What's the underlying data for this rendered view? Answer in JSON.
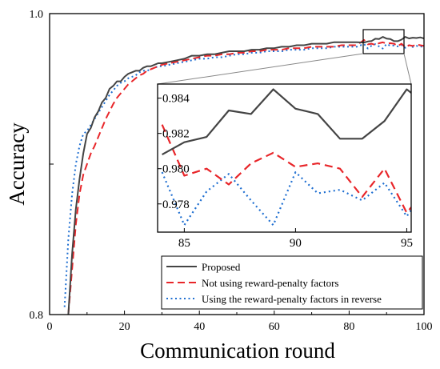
{
  "chart_data": {
    "type": "line",
    "xlabel": "Communication round",
    "ylabel": "Accuracy",
    "xlim": [
      0,
      100
    ],
    "ylim": [
      0.8,
      1.0
    ],
    "x_ticks": [
      "0",
      "20",
      "40",
      "60",
      "80",
      "100"
    ],
    "y_ticks": [
      "0.8",
      "1.0"
    ],
    "legend_position": "bottom-right",
    "series": [
      {
        "name": "Proposed",
        "color": "#444444",
        "style": "solid",
        "x": [
          5,
          6,
          7,
          8,
          9,
          10,
          11,
          12,
          13,
          14,
          15,
          16,
          17,
          18,
          19,
          20,
          21,
          22,
          23,
          24,
          25,
          26,
          27,
          28,
          29,
          30,
          32,
          34,
          36,
          38,
          40,
          42,
          44,
          46,
          48,
          50,
          52,
          54,
          56,
          58,
          60,
          62,
          64,
          66,
          68,
          70,
          72,
          74,
          76,
          78,
          80,
          82,
          84,
          85,
          86,
          87,
          88,
          89,
          90,
          91,
          92,
          93,
          94,
          95,
          96,
          97,
          98,
          99,
          100
        ],
        "y": [
          0.8,
          0.84,
          0.87,
          0.89,
          0.907,
          0.92,
          0.924,
          0.931,
          0.935,
          0.941,
          0.944,
          0.95,
          0.952,
          0.955,
          0.955,
          0.958,
          0.96,
          0.961,
          0.962,
          0.962,
          0.964,
          0.965,
          0.965,
          0.966,
          0.967,
          0.967,
          0.968,
          0.969,
          0.97,
          0.972,
          0.972,
          0.973,
          0.973,
          0.974,
          0.975,
          0.975,
          0.975,
          0.976,
          0.976,
          0.977,
          0.977,
          0.978,
          0.978,
          0.979,
          0.979,
          0.98,
          0.98,
          0.98,
          0.981,
          0.981,
          0.981,
          0.981,
          0.9808,
          0.9815,
          0.9818,
          0.9833,
          0.9831,
          0.9845,
          0.9834,
          0.9831,
          0.9817,
          0.9817,
          0.9827,
          0.9845,
          0.9835,
          0.984,
          0.9838,
          0.9842,
          0.9835
        ]
      },
      {
        "name": "Not using reward-penalty factors",
        "color": "#e8262a",
        "style": "dashed",
        "x": [
          5,
          6,
          7,
          8,
          9,
          10,
          11,
          12,
          13,
          14,
          15,
          16,
          17,
          18,
          19,
          20,
          21,
          22,
          23,
          24,
          25,
          26,
          27,
          28,
          29,
          30,
          32,
          34,
          36,
          38,
          40,
          42,
          44,
          46,
          48,
          50,
          52,
          54,
          56,
          58,
          60,
          62,
          64,
          66,
          68,
          70,
          72,
          74,
          76,
          78,
          80,
          82,
          84,
          85,
          86,
          87,
          88,
          89,
          90,
          91,
          92,
          93,
          94,
          95,
          96,
          97,
          98,
          99,
          100
        ],
        "y": [
          0.8,
          0.83,
          0.86,
          0.88,
          0.893,
          0.9,
          0.907,
          0.912,
          0.918,
          0.924,
          0.93,
          0.935,
          0.94,
          0.944,
          0.947,
          0.95,
          0.953,
          0.955,
          0.957,
          0.959,
          0.96,
          0.962,
          0.963,
          0.964,
          0.965,
          0.966,
          0.967,
          0.968,
          0.969,
          0.97,
          0.971,
          0.972,
          0.972,
          0.973,
          0.973,
          0.974,
          0.974,
          0.975,
          0.975,
          0.976,
          0.976,
          0.976,
          0.977,
          0.977,
          0.977,
          0.978,
          0.978,
          0.978,
          0.978,
          0.979,
          0.979,
          0.979,
          0.9825,
          0.9796,
          0.98,
          0.9791,
          0.9803,
          0.9809,
          0.9801,
          0.9803,
          0.98,
          0.9784,
          0.98,
          0.9775,
          0.979,
          0.9785,
          0.9795,
          0.979,
          0.9785
        ]
      },
      {
        "name": "Using the reward-penalty factors in reverse",
        "color": "#1f6fd1",
        "style": "dotted",
        "x": [
          4,
          5,
          6,
          7,
          8,
          9,
          10,
          11,
          12,
          13,
          14,
          15,
          16,
          17,
          18,
          19,
          20,
          21,
          22,
          23,
          24,
          25,
          26,
          27,
          28,
          29,
          30,
          32,
          34,
          36,
          38,
          40,
          42,
          44,
          46,
          48,
          50,
          52,
          54,
          56,
          58,
          60,
          62,
          64,
          66,
          68,
          70,
          72,
          74,
          76,
          78,
          80,
          82,
          84,
          85,
          86,
          87,
          88,
          89,
          90,
          91,
          92,
          93,
          94,
          95,
          96,
          97,
          98,
          99,
          100
        ],
        "y": [
          0.805,
          0.85,
          0.88,
          0.9,
          0.912,
          0.92,
          0.922,
          0.926,
          0.93,
          0.934,
          0.938,
          0.942,
          0.946,
          0.949,
          0.952,
          0.954,
          0.955,
          0.957,
          0.958,
          0.959,
          0.961,
          0.962,
          0.962,
          0.963,
          0.964,
          0.965,
          0.965,
          0.966,
          0.967,
          0.968,
          0.969,
          0.97,
          0.97,
          0.971,
          0.971,
          0.972,
          0.973,
          0.973,
          0.974,
          0.974,
          0.975,
          0.975,
          0.975,
          0.976,
          0.976,
          0.976,
          0.977,
          0.977,
          0.977,
          0.978,
          0.978,
          0.978,
          0.978,
          0.9798,
          0.9768,
          0.9787,
          0.9797,
          0.9782,
          0.9768,
          0.9798,
          0.9786,
          0.9788,
          0.9782,
          0.9792,
          0.9773,
          0.979,
          0.9778,
          0.9785,
          0.9782,
          0.9778
        ]
      }
    ],
    "inset": {
      "xlim": [
        83.8,
        95.2
      ],
      "ylim": [
        0.9764,
        0.9848
      ],
      "x_ticks": [
        "85",
        "90",
        "95"
      ],
      "y_ticks": [
        "0.978",
        "0.980",
        "0.982",
        "0.984"
      ]
    }
  }
}
